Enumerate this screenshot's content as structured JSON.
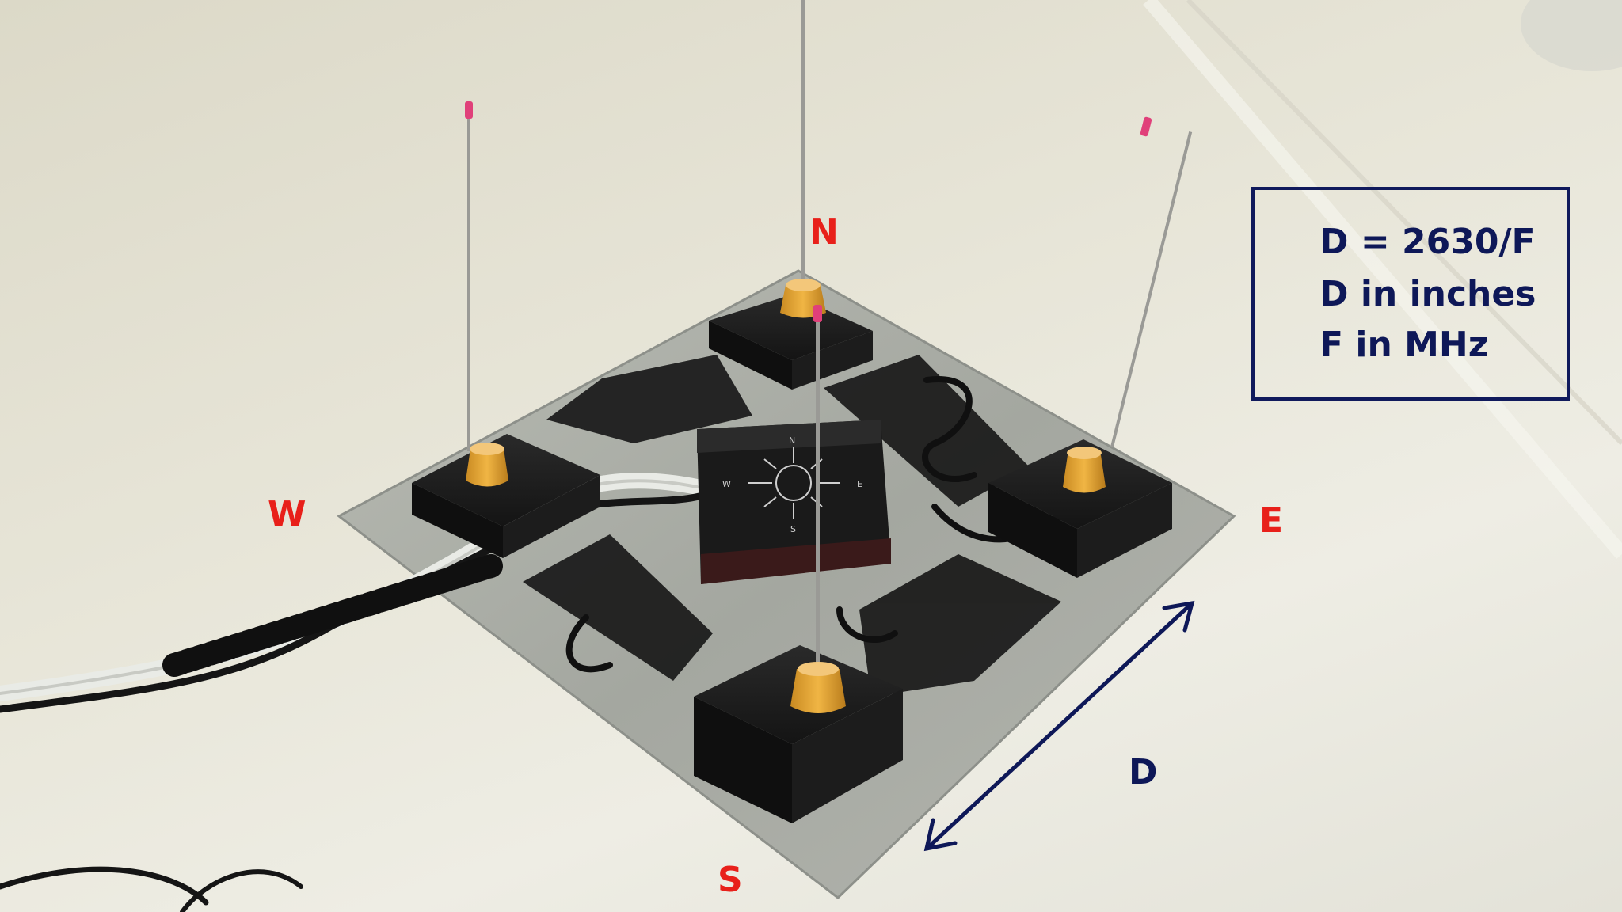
{
  "compass": {
    "north": "N",
    "west": "W",
    "east": "E",
    "south": "S"
  },
  "dimension_label": "D",
  "formula_box": {
    "lines": [
      "D = 2630/F",
      "D in inches",
      "F in MHz"
    ]
  },
  "center_box_compass": {
    "n": "N",
    "w": "W",
    "e": "E",
    "s": "S"
  },
  "colors": {
    "compass_label": "#e8201a",
    "formula_text": "#0e1858",
    "arrow": "#0e1858",
    "plate": "#a9aca5",
    "boxes": "#1a1a1a",
    "antenna_base": "#e2a93a",
    "antenna_tip": "#e0407a"
  }
}
